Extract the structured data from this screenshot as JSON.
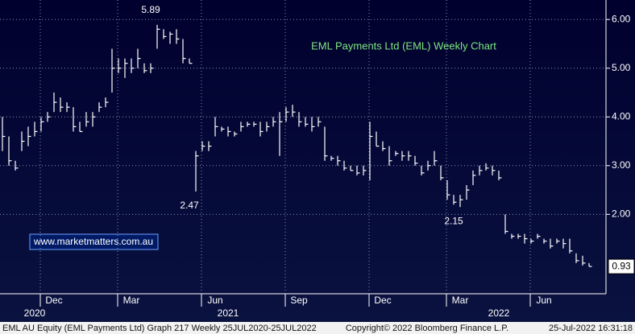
{
  "chart_data": {
    "type": "hlc",
    "title": "EML Payments Ltd (EML) Weekly Chart",
    "watermark": "www.marketmatters.com.au",
    "footer": {
      "left": "EML AU Equity (EML Payments Ltd) Graph 217  Weekly 25JUL2020-25JUL2022",
      "center": "Copyright© 2022 Bloomberg Finance L.P.",
      "right": "25-Jul-2022 16:31:18"
    },
    "categories": [
      null,
      null,
      null,
      null,
      null,
      null,
      null,
      null,
      "Dec",
      null,
      null,
      null,
      null,
      null,
      null,
      null,
      null,
      null,
      null,
      null,
      "Mar",
      null,
      null,
      null,
      null,
      null,
      null,
      null,
      null,
      null,
      null,
      null,
      null,
      "Jun",
      null,
      null,
      null,
      null,
      null,
      null,
      null,
      null,
      null,
      null,
      null,
      null,
      "Sep",
      null,
      null,
      null,
      null,
      null,
      null,
      null,
      null,
      null,
      null,
      null,
      null,
      "Dec",
      null,
      null,
      null,
      null,
      null,
      null,
      null,
      null,
      null,
      null,
      null,
      "Mar",
      null,
      null,
      null,
      null,
      null,
      null,
      null,
      null,
      null,
      null,
      null,
      null,
      "Jun",
      null,
      null,
      null,
      null,
      null,
      null,
      null
    ],
    "year_labels": [
      null,
      null,
      null,
      null,
      null,
      "2020",
      null,
      null,
      null,
      null,
      null,
      null,
      null,
      null,
      null,
      null,
      null,
      null,
      null,
      null,
      null,
      null,
      null,
      null,
      null,
      null,
      null,
      null,
      null,
      null,
      null,
      null,
      null,
      null,
      null,
      "2021",
      null,
      null,
      null,
      null,
      null,
      null,
      null,
      null,
      null,
      null,
      null,
      null,
      null,
      null,
      null,
      null,
      null,
      null,
      null,
      null,
      null,
      null,
      null,
      null,
      null,
      null,
      null,
      null,
      null,
      null,
      null,
      null,
      null,
      null,
      null,
      null,
      null,
      null,
      null,
      null,
      null,
      "2022",
      null,
      null,
      null,
      null,
      null,
      null,
      null,
      null,
      null,
      null,
      null,
      null,
      null,
      null
    ],
    "high": [
      4.0,
      3.6,
      3.1,
      3.7,
      3.8,
      3.9,
      4.0,
      4.1,
      4.5,
      4.4,
      4.3,
      4.2,
      3.9,
      4.1,
      4.1,
      4.3,
      4.4,
      5.4,
      5.2,
      5.2,
      5.2,
      5.4,
      5.1,
      5.1,
      5.89,
      5.8,
      5.75,
      5.8,
      5.6,
      5.2,
      3.3,
      3.5,
      3.5,
      4.0,
      3.8,
      3.8,
      3.7,
      3.9,
      3.9,
      3.9,
      3.9,
      3.9,
      4.0,
      4.1,
      4.2,
      4.25,
      4.1,
      4.0,
      4.0,
      4.0,
      3.8,
      3.2,
      3.2,
      3.1,
      3.0,
      3.0,
      3.0,
      3.9,
      3.7,
      3.5,
      3.4,
      3.3,
      3.3,
      3.3,
      3.2,
      3.0,
      3.1,
      3.3,
      3.0,
      2.7,
      2.4,
      2.4,
      2.6,
      2.9,
      3.0,
      3.05,
      3.0,
      2.9,
      2.0,
      1.6,
      1.6,
      1.6,
      1.5,
      1.6,
      1.5,
      1.5,
      1.5,
      1.5,
      1.5,
      1.2,
      1.15,
      1.0
    ],
    "low": [
      3.3,
      3.0,
      2.9,
      3.3,
      3.4,
      3.6,
      3.7,
      3.9,
      4.1,
      4.1,
      4.1,
      3.7,
      3.7,
      3.8,
      3.8,
      4.1,
      4.2,
      4.5,
      4.9,
      4.8,
      4.9,
      5.0,
      4.9,
      4.9,
      5.4,
      5.6,
      5.5,
      5.5,
      5.1,
      5.1,
      2.47,
      3.3,
      3.3,
      3.6,
      3.7,
      3.6,
      3.6,
      3.7,
      3.8,
      3.8,
      3.6,
      3.7,
      3.8,
      3.2,
      3.9,
      4.0,
      3.8,
      3.8,
      3.7,
      3.8,
      3.1,
      3.1,
      3.0,
      2.9,
      2.9,
      2.8,
      2.8,
      2.7,
      3.4,
      3.3,
      3.0,
      3.2,
      3.1,
      3.1,
      3.0,
      2.8,
      2.9,
      3.0,
      2.7,
      2.3,
      2.2,
      2.15,
      2.3,
      2.6,
      2.8,
      2.9,
      2.8,
      2.7,
      1.6,
      1.5,
      1.5,
      1.4,
      1.4,
      1.5,
      1.4,
      1.3,
      1.4,
      1.3,
      1.2,
      1.0,
      0.95,
      0.93
    ],
    "close": [
      3.6,
      3.1,
      2.95,
      3.5,
      3.6,
      3.7,
      3.9,
      4.0,
      4.3,
      4.2,
      4.2,
      3.8,
      3.7,
      3.9,
      4.0,
      4.2,
      4.3,
      5.0,
      5.0,
      5.1,
      5.0,
      5.2,
      4.95,
      5.0,
      5.8,
      5.65,
      5.7,
      5.6,
      5.2,
      5.1,
      3.2,
      3.4,
      3.4,
      3.8,
      3.75,
      3.7,
      3.65,
      3.8,
      3.85,
      3.85,
      3.7,
      3.8,
      3.9,
      3.9,
      4.1,
      4.1,
      3.9,
      3.85,
      3.8,
      3.9,
      3.2,
      3.15,
      3.1,
      2.95,
      2.9,
      2.85,
      2.9,
      3.6,
      3.4,
      3.35,
      3.1,
      3.25,
      3.2,
      3.2,
      3.05,
      2.85,
      3.0,
      3.1,
      2.75,
      2.4,
      2.25,
      2.3,
      2.5,
      2.8,
      2.9,
      2.95,
      2.9,
      2.75,
      1.65,
      1.55,
      1.55,
      1.5,
      1.45,
      1.55,
      1.45,
      1.35,
      1.45,
      1.4,
      1.25,
      1.05,
      1.0,
      0.93
    ],
    "color": "#ffffff",
    "title_color": "#7ee87e",
    "annotations": [
      5.89,
      2.47,
      2.15
    ],
    "last_price": 0.93,
    "ylim": [
      0.37,
      6.4
    ],
    "yticks": [
      {
        "value": 2,
        "label": "2.00"
      },
      {
        "value": 3,
        "label": "3.00"
      },
      {
        "value": 4,
        "label": "4.00"
      },
      {
        "value": 5,
        "label": "5.00"
      },
      {
        "value": 6,
        "label": "6.00"
      }
    ],
    "grid": true
  }
}
